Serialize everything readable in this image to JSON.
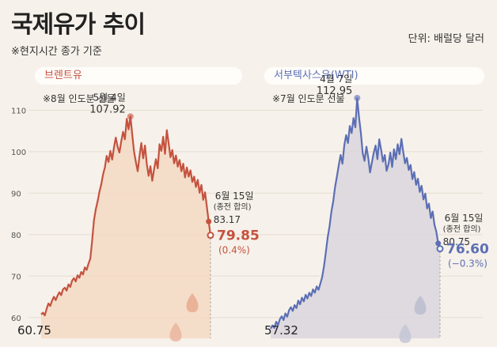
{
  "header": {
    "title": "국제유가 추이",
    "subtitle": "※현지시간 종가 기준",
    "unit": "단위: 배럴당 달러"
  },
  "colors": {
    "brent": "#c4523f",
    "wti": "#5c6fb5",
    "brent_fill": "#f3d9c3",
    "wti_fill": "#d9d6dd",
    "background": "#f6f1ea"
  },
  "chart_data": [
    {
      "type": "area",
      "title": "브렌트유",
      "note": "※8월 인도분 선물",
      "yticks": [
        "110",
        "100",
        "90",
        "80",
        "70",
        "60"
      ],
      "ylim": [
        55,
        116
      ],
      "grid": true,
      "series": [
        {
          "name": "브렌트유",
          "values": [
            60.75,
            61.2,
            60.5,
            62.1,
            63.4,
            62.8,
            64.1,
            65.0,
            64.2,
            65.3,
            66.1,
            65.4,
            66.8,
            67.2,
            66.5,
            68.0,
            67.4,
            68.9,
            69.5,
            68.7,
            70.2,
            69.6,
            71.0,
            70.4,
            72.1,
            71.5,
            73.0,
            74.2,
            78.5,
            83.4,
            86.1,
            88.0,
            90.3,
            92.1,
            94.5,
            96.2,
            99.0,
            97.5,
            100.2,
            98.1,
            101.0,
            103.4,
            101.2,
            99.8,
            102.5,
            104.8,
            103.0,
            107.92,
            105.4,
            108.5,
            104.1,
            100.0,
            97.5,
            95.3,
            99.0,
            102.1,
            98.4,
            101.5,
            97.0,
            94.2,
            96.5,
            93.0,
            95.8,
            98.2,
            96.0,
            101.8,
            100.2,
            103.6,
            99.5,
            105.2,
            102.0,
            98.7,
            100.4,
            97.2,
            99.1,
            96.4,
            98.0,
            95.3,
            97.1,
            93.8,
            96.2,
            94.0,
            95.5,
            92.7,
            94.0,
            91.5,
            93.2,
            90.1,
            92.0,
            88.4,
            90.2,
            86.7,
            83.17,
            79.85
          ]
        }
      ],
      "annotations": [
        {
          "label": "5월 4일",
          "value": "107.92"
        },
        {
          "label": "6월 15일",
          "sublabel": "(종전 합의)",
          "value": "83.17"
        },
        {
          "value": "79.85",
          "change": "(0.4%)"
        }
      ],
      "start_value": "60.75"
    },
    {
      "type": "area",
      "title": "서부텍사스유(WTI)",
      "note": "※7월 인도분 선물",
      "series": [
        {
          "name": "서부텍사스유(WTI)",
          "values": [
            57.32,
            58.1,
            57.5,
            59.0,
            58.2,
            59.6,
            60.3,
            59.4,
            61.0,
            60.2,
            61.8,
            62.5,
            61.6,
            63.0,
            62.3,
            64.1,
            63.2,
            64.8,
            63.9,
            65.5,
            64.6,
            66.0,
            65.2,
            66.8,
            66.0,
            67.5,
            66.7,
            68.2,
            69.8,
            72.5,
            75.9,
            79.4,
            82.0,
            85.6,
            88.1,
            91.5,
            94.0,
            96.8,
            99.2,
            97.1,
            101.5,
            104.0,
            102.1,
            106.2,
            104.5,
            108.1,
            105.9,
            112.95,
            108.2,
            104.5,
            99.7,
            97.8,
            101.2,
            98.6,
            95.0,
            97.4,
            99.8,
            101.5,
            98.2,
            103.0,
            100.5,
            97.6,
            99.2,
            95.4,
            97.0,
            99.8,
            96.3,
            100.6,
            98.2,
            101.8,
            99.4,
            103.1,
            100.0,
            97.2,
            98.5,
            95.6,
            96.8,
            93.4,
            95.1,
            92.0,
            93.5,
            90.3,
            91.8,
            88.5,
            89.9,
            86.3,
            87.5,
            84.0,
            85.6,
            82.4,
            80.75,
            77.9,
            76.6
          ]
        }
      ],
      "annotations": [
        {
          "label": "4월 7일",
          "value": "112.95"
        },
        {
          "label": "6월 15일",
          "sublabel": "(종전 합의)",
          "value": "80.75"
        },
        {
          "value": "76.60",
          "change": "(−0.3%)"
        }
      ],
      "start_value": "57.32"
    }
  ]
}
